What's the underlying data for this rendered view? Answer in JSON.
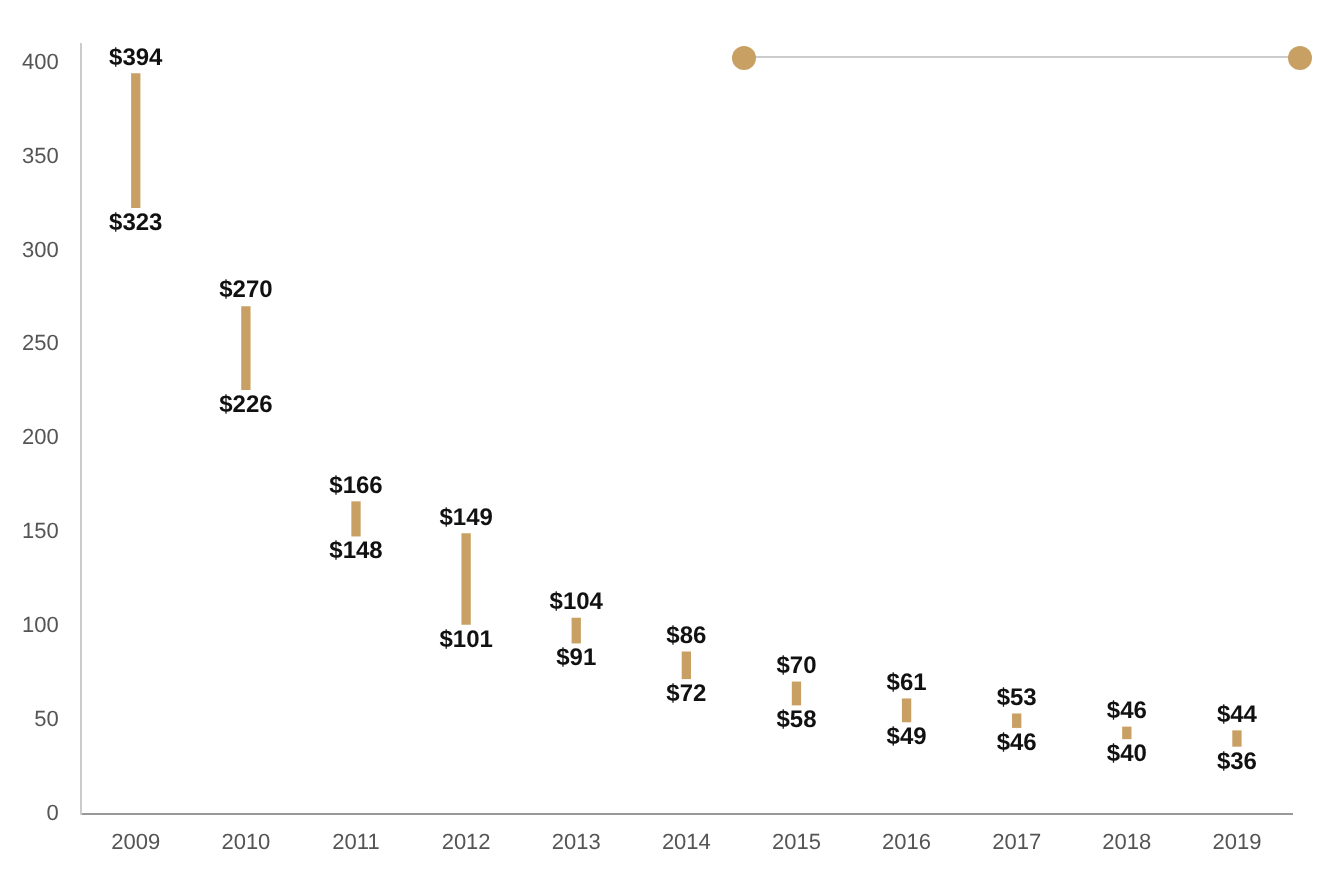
{
  "chart_data": {
    "type": "bar",
    "categories": [
      "2009",
      "2010",
      "2011",
      "2012",
      "2013",
      "2014",
      "2015",
      "2016",
      "2017",
      "2018",
      "2019"
    ],
    "base": [
      323,
      226,
      148,
      101,
      91,
      72,
      58,
      49,
      46,
      40,
      36
    ],
    "values": [
      71,
      44,
      18,
      48,
      13,
      14,
      12,
      12,
      7,
      6,
      8
    ],
    "color": "#c9a063",
    "ylim": [
      0,
      410
    ],
    "yticks": [
      0,
      50,
      100,
      150,
      200,
      250,
      300,
      350,
      400
    ],
    "grid": false,
    "legend": false,
    "annotations": [
      {
        "text": "$394",
        "x": "2009",
        "y": 394
      },
      {
        "text": "$323",
        "x": "2009",
        "y": 323
      },
      {
        "text": "$270",
        "x": "2010",
        "y": 270
      },
      {
        "text": "$226",
        "x": "2010",
        "y": 226
      },
      {
        "text": "$166",
        "x": "2011",
        "y": 166
      },
      {
        "text": "$148",
        "x": "2011",
        "y": 148
      },
      {
        "text": "$149",
        "x": "2012",
        "y": 149
      },
      {
        "text": "$101",
        "x": "2012",
        "y": 101
      },
      {
        "text": "$104",
        "x": "2013",
        "y": 104
      },
      {
        "text": "$91",
        "x": "2013",
        "y": 91
      },
      {
        "text": "$86",
        "x": "2014",
        "y": 86
      },
      {
        "text": "$72",
        "x": "2014",
        "y": 72
      },
      {
        "text": "$70",
        "x": "2015",
        "y": 70
      },
      {
        "text": "$58",
        "x": "2015",
        "y": 58
      },
      {
        "text": "$61",
        "x": "2016",
        "y": 61
      },
      {
        "text": "$49",
        "x": "2016",
        "y": 49
      },
      {
        "text": "$53",
        "x": "2017",
        "y": 53
      },
      {
        "text": "$46",
        "x": "2017",
        "y": 46
      },
      {
        "text": "$46",
        "x": "2018",
        "y": 46
      },
      {
        "text": "$40",
        "x": "2018",
        "y": 40
      },
      {
        "text": "$44",
        "x": "2019",
        "y": 44
      },
      {
        "text": "$36",
        "x": "2019",
        "y": 36
      }
    ]
  }
}
